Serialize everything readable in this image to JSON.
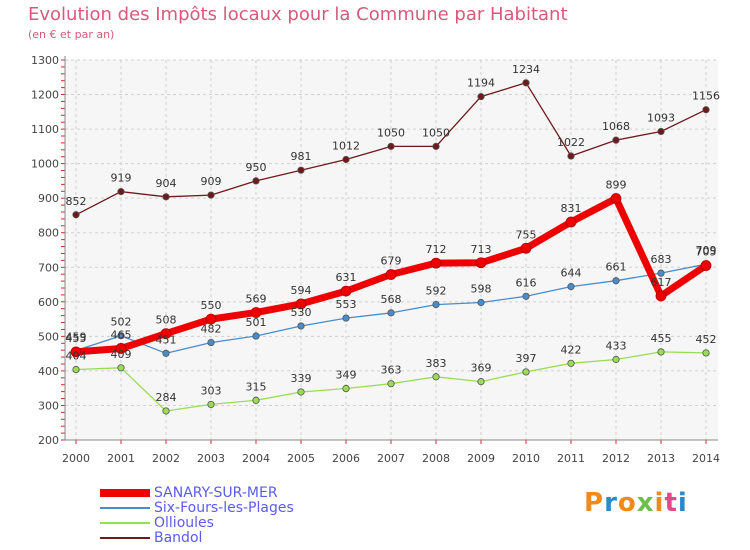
{
  "header": {
    "title": "Evolution des Impôts locaux pour la Commune par Habitant",
    "subtitle": "(en € et par an)"
  },
  "brand": {
    "logo_text": "Proxiti",
    "colors": [
      "#f08a1c",
      "#2b8ac9",
      "#f08a1c",
      "#6cc04a",
      "#f08a1c",
      "#e04a8a",
      "#2b8ac9"
    ]
  },
  "chart_data": {
    "type": "line",
    "title": "Evolution des Impôts locaux pour la Commune par Habitant",
    "subtitle": "(en € et par an)",
    "xlabel": "",
    "ylabel": "",
    "x": [
      "2000",
      "2001",
      "2002",
      "2003",
      "2004",
      "2005",
      "2006",
      "2007",
      "2008",
      "2009",
      "2010",
      "2011",
      "2012",
      "2013",
      "2014"
    ],
    "ylim": [
      200,
      1300
    ],
    "yticks": [
      200,
      300,
      400,
      500,
      600,
      700,
      800,
      900,
      1000,
      1100,
      1200,
      1300
    ],
    "grid": true,
    "legend_position": "bottom-left",
    "series": [
      {
        "name": "SANARY-SUR-MER",
        "color": "#ee0000",
        "values": [
          455,
          465,
          508,
          550,
          569,
          594,
          631,
          679,
          712,
          713,
          755,
          831,
          899,
          617,
          705
        ]
      },
      {
        "name": "Six-Fours-les-Plages",
        "color": "#4a8cc9",
        "values": [
          459,
          502,
          451,
          482,
          501,
          530,
          553,
          568,
          592,
          598,
          616,
          644,
          661,
          683,
          709
        ]
      },
      {
        "name": "Ollioules",
        "color": "#99dd55",
        "values": [
          404,
          409,
          284,
          303,
          315,
          339,
          349,
          363,
          383,
          369,
          397,
          422,
          433,
          455,
          452
        ]
      },
      {
        "name": "Bandol",
        "color": "#6e1a1a",
        "values": [
          852,
          919,
          904,
          909,
          950,
          981,
          1012,
          1050,
          1050,
          1194,
          1234,
          1022,
          1068,
          1093,
          1156
        ]
      }
    ]
  }
}
